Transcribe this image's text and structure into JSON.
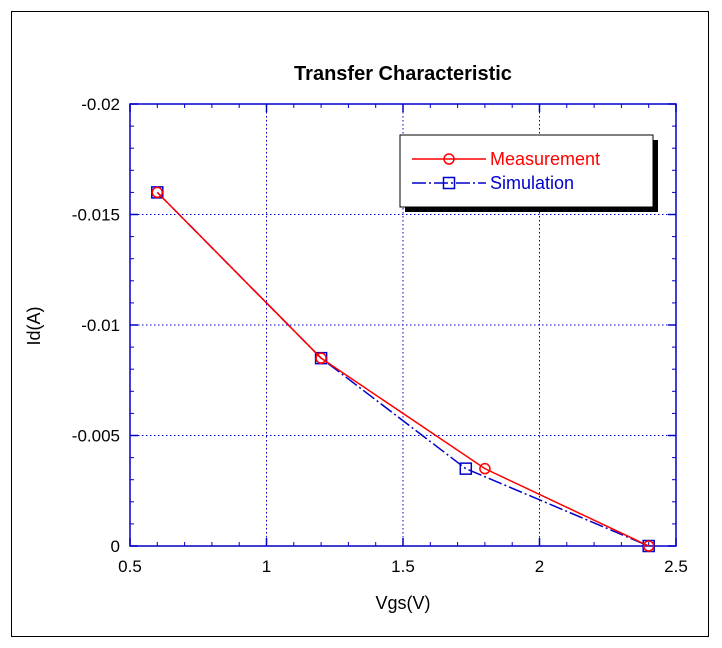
{
  "chart_data": {
    "type": "line",
    "title": "Transfer Characteristic",
    "xlabel": "Vgs(V)",
    "ylabel": "Id(A)",
    "xlim": [
      0.5,
      2.5
    ],
    "ylim": [
      0,
      -0.02
    ],
    "xticks": [
      0.5,
      1,
      1.5,
      2,
      2.5
    ],
    "xtick_labels": [
      "0.5",
      "1",
      "1.5",
      "2",
      "2.5"
    ],
    "yticks": [
      0,
      -0.005,
      -0.01,
      -0.015,
      -0.02
    ],
    "ytick_labels": [
      "0",
      "-0.005",
      "-0.01",
      "-0.015",
      "-0.02"
    ],
    "grid": true,
    "legend_position": "top-right",
    "series": [
      {
        "name": "Measurement",
        "color": "#ff0000",
        "marker": "circle",
        "line_style": "solid",
        "x": [
          0.6,
          1.2,
          1.8,
          2.4
        ],
        "y": [
          -0.016,
          -0.0085,
          -0.0035,
          0
        ]
      },
      {
        "name": "Simulation",
        "color": "#0000cc",
        "marker": "square",
        "line_style": "dash-dot",
        "x": [
          0.6,
          1.2,
          1.73,
          2.4
        ],
        "y": [
          -0.016,
          -0.0085,
          -0.0035,
          0
        ]
      }
    ]
  }
}
